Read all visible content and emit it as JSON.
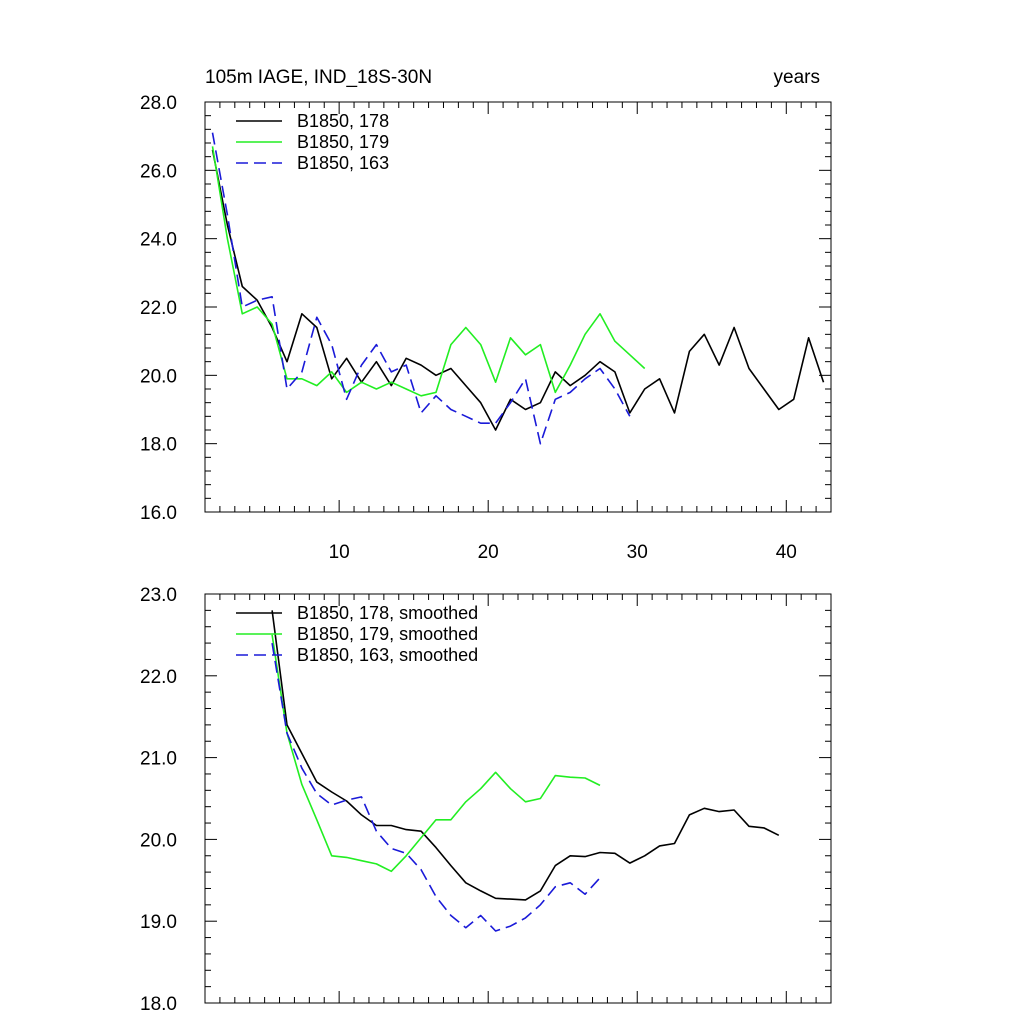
{
  "chart_data": [
    {
      "type": "line",
      "title": "105m IAGE, IND_18S-30N",
      "title_right": "years",
      "xlabel": "",
      "ylabel": "",
      "xlim": [
        1,
        43
      ],
      "ylim": [
        16.0,
        28.0
      ],
      "x_ticks": [
        10,
        20,
        30,
        40
      ],
      "y_ticks": [
        "16.0",
        "18.0",
        "20.0",
        "22.0",
        "24.0",
        "26.0",
        "28.0"
      ],
      "legend_position": "top-left",
      "series": [
        {
          "name": "B1850, 178",
          "color": "#000000",
          "dash": "solid",
          "x": [
            1.5,
            2.5,
            3.5,
            4.5,
            5.5,
            6.5,
            7.5,
            8.5,
            9.5,
            10.5,
            11.5,
            12.5,
            13.5,
            14.5,
            15.5,
            16.5,
            17.5,
            18.5,
            19.5,
            20.5,
            21.5,
            22.5,
            23.5,
            24.5,
            25.5,
            26.5,
            27.5,
            28.5,
            29.5,
            30.5,
            31.5,
            32.5,
            33.5,
            34.5,
            35.5,
            36.5,
            37.5,
            38.5,
            39.5,
            40.5,
            41.5,
            42.5
          ],
          "values": [
            26.6,
            24.4,
            22.6,
            22.2,
            21.4,
            20.4,
            21.8,
            21.4,
            19.9,
            20.5,
            19.8,
            20.4,
            19.7,
            20.5,
            20.3,
            20.0,
            20.2,
            19.7,
            19.2,
            18.4,
            19.3,
            19.0,
            19.2,
            20.1,
            19.7,
            20.0,
            20.4,
            20.1,
            18.9,
            19.6,
            19.9,
            18.9,
            20.7,
            21.2,
            20.3,
            21.4,
            20.2,
            19.6,
            19.0,
            19.3,
            21.1,
            19.8
          ]
        },
        {
          "name": "B1850, 179",
          "color": "#22ee22",
          "dash": "solid",
          "x": [
            1.5,
            2.5,
            3.5,
            4.5,
            5.5,
            6.5,
            7.5,
            8.5,
            9.5,
            10.5,
            11.5,
            12.5,
            13.5,
            14.5,
            15.5,
            16.5,
            17.5,
            18.5,
            19.5,
            20.5,
            21.5,
            22.5,
            23.5,
            24.5,
            25.5,
            26.5,
            27.5,
            28.5,
            29.5,
            30.5
          ],
          "values": [
            26.7,
            24.0,
            21.8,
            22.0,
            21.5,
            19.9,
            19.9,
            19.7,
            20.1,
            19.5,
            19.8,
            19.6,
            19.8,
            19.6,
            19.4,
            19.5,
            20.9,
            21.4,
            20.9,
            19.8,
            21.1,
            20.6,
            20.9,
            19.5,
            20.3,
            21.2,
            21.8,
            21.0,
            20.6,
            20.2
          ]
        },
        {
          "name": "B1850, 163",
          "color": "#1a1ad8",
          "dash": "dashed",
          "x": [
            1.5,
            2.5,
            3.5,
            4.5,
            5.5,
            6.5,
            7.5,
            8.5,
            9.5,
            10.5,
            11.5,
            12.5,
            13.5,
            14.5,
            15.5,
            16.5,
            17.5,
            18.5,
            19.5,
            20.5,
            21.5,
            22.5,
            23.5,
            24.5,
            25.5,
            26.5,
            27.5,
            28.5,
            29.5
          ],
          "values": [
            27.1,
            24.7,
            22.0,
            22.2,
            22.3,
            19.6,
            20.1,
            21.7,
            20.9,
            19.3,
            20.3,
            20.9,
            20.1,
            20.3,
            18.9,
            19.4,
            19.0,
            18.8,
            18.6,
            18.6,
            19.2,
            19.9,
            18.0,
            19.3,
            19.5,
            19.9,
            20.2,
            19.6,
            18.8
          ]
        }
      ]
    },
    {
      "type": "line",
      "title": "",
      "xlabel": "",
      "ylabel": "",
      "xlim": [
        1,
        43
      ],
      "ylim": [
        18.0,
        23.0
      ],
      "x_ticks": [
        10,
        20,
        30,
        40
      ],
      "y_ticks": [
        "18.0",
        "19.0",
        "20.0",
        "21.0",
        "22.0",
        "23.0"
      ],
      "legend_position": "top-left",
      "series": [
        {
          "name": "B1850, 178, smoothed",
          "color": "#000000",
          "dash": "solid",
          "x": [
            5.5,
            6.5,
            7.5,
            8.5,
            9.5,
            10.5,
            11.5,
            12.5,
            13.5,
            14.5,
            15.5,
            16.5,
            17.5,
            18.5,
            19.5,
            20.5,
            21.5,
            22.5,
            23.5,
            24.5,
            25.5,
            26.5,
            27.5,
            28.5,
            29.5,
            30.5,
            31.5,
            32.5,
            33.5,
            34.5,
            35.5,
            36.5,
            37.5,
            38.5,
            39.5
          ],
          "values": [
            22.8,
            21.4,
            21.05,
            20.7,
            20.58,
            20.47,
            20.3,
            20.17,
            20.17,
            20.12,
            20.1,
            19.9,
            19.68,
            19.47,
            19.37,
            19.28,
            19.27,
            19.26,
            19.37,
            19.68,
            19.8,
            19.79,
            19.84,
            19.83,
            19.71,
            19.8,
            19.92,
            19.95,
            20.3,
            20.38,
            20.34,
            20.36,
            20.16,
            20.14,
            20.05
          ]
        },
        {
          "name": "B1850, 179, smoothed",
          "color": "#22ee22",
          "dash": "solid",
          "x": [
            5.5,
            6.5,
            7.5,
            8.5,
            9.5,
            10.5,
            11.5,
            12.5,
            13.5,
            14.5,
            15.5,
            16.5,
            17.5,
            18.5,
            19.5,
            20.5,
            21.5,
            22.5,
            23.5,
            24.5,
            25.5,
            26.5,
            27.5
          ],
          "values": [
            22.5,
            21.3,
            20.67,
            20.24,
            19.8,
            19.78,
            19.74,
            19.7,
            19.61,
            19.8,
            20.02,
            20.24,
            20.24,
            20.46,
            20.62,
            20.82,
            20.62,
            20.46,
            20.5,
            20.78,
            20.76,
            20.75,
            20.66
          ]
        },
        {
          "name": "B1850, 163, smoothed",
          "color": "#1a1ad8",
          "dash": "dashed",
          "x": [
            5.5,
            6.5,
            7.5,
            8.5,
            9.5,
            10.5,
            11.5,
            12.5,
            13.5,
            14.5,
            15.5,
            16.5,
            17.5,
            18.5,
            19.5,
            20.5,
            21.5,
            22.5,
            23.5,
            24.5,
            25.5,
            26.5,
            27.5
          ],
          "values": [
            22.4,
            21.3,
            20.87,
            20.56,
            20.42,
            20.48,
            20.52,
            20.1,
            19.89,
            19.83,
            19.63,
            19.3,
            19.07,
            18.92,
            19.07,
            18.88,
            18.94,
            19.04,
            19.2,
            19.42,
            19.47,
            19.33,
            19.53
          ]
        }
      ]
    }
  ]
}
